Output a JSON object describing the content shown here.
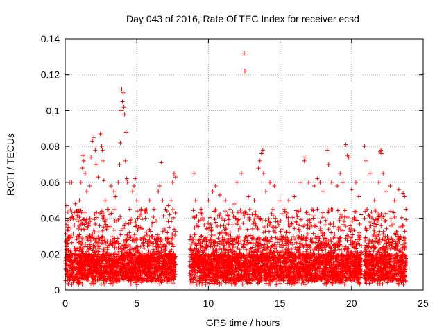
{
  "chart_data": {
    "type": "scatter",
    "title": "Day 043 of 2016, Rate Of TEC Index for receiver ecsd",
    "xlabel": "GPS time / hours",
    "ylabel": "ROTI / TECUs",
    "xlim": [
      0,
      25
    ],
    "ylim": [
      0,
      0.14
    ],
    "x_ticks": [
      "0",
      "5",
      "10",
      "15",
      "20",
      "25"
    ],
    "y_ticks": [
      "0",
      "0.02",
      "0.04",
      "0.06",
      "0.08",
      "0.1",
      "0.12",
      "0.14"
    ],
    "grid": true,
    "marker": "+",
    "color": "#ff0000",
    "series": [
      {
        "points": [
          [
            0.1,
            0.047
          ],
          [
            0.2,
            0.035
          ],
          [
            0.3,
            0.06
          ],
          [
            0.45,
            0.06
          ],
          [
            0.5,
            0.041
          ],
          [
            0.7,
            0.048
          ],
          [
            0.9,
            0.045
          ],
          [
            1.0,
            0.05
          ],
          [
            1.1,
            0.06
          ],
          [
            1.2,
            0.068
          ],
          [
            1.25,
            0.075
          ],
          [
            1.3,
            0.072
          ],
          [
            1.4,
            0.065
          ],
          [
            1.5,
            0.055
          ],
          [
            1.7,
            0.058
          ],
          [
            1.8,
            0.074
          ],
          [
            1.9,
            0.083
          ],
          [
            2.0,
            0.085
          ],
          [
            2.1,
            0.078
          ],
          [
            2.15,
            0.07
          ],
          [
            2.3,
            0.063
          ],
          [
            2.45,
            0.087
          ],
          [
            2.55,
            0.08
          ],
          [
            2.6,
            0.078
          ],
          [
            2.65,
            0.072
          ],
          [
            2.7,
            0.061
          ],
          [
            2.8,
            0.05
          ],
          [
            3.0,
            0.045
          ],
          [
            3.2,
            0.058
          ],
          [
            3.4,
            0.055
          ],
          [
            3.5,
            0.052
          ],
          [
            3.7,
            0.06
          ],
          [
            3.8,
            0.07
          ],
          [
            3.85,
            0.082
          ],
          [
            3.9,
            0.1
          ],
          [
            3.95,
            0.112
          ],
          [
            4.0,
            0.105
          ],
          [
            4.05,
            0.11
          ],
          [
            4.1,
            0.102
          ],
          [
            4.15,
            0.098
          ],
          [
            4.2,
            0.072
          ],
          [
            4.25,
            0.088
          ],
          [
            4.3,
            0.062
          ],
          [
            4.35,
            0.06
          ],
          [
            4.5,
            0.045
          ],
          [
            4.7,
            0.055
          ],
          [
            4.8,
            0.058
          ],
          [
            4.9,
            0.062
          ],
          [
            5.0,
            0.05
          ],
          [
            5.3,
            0.045
          ],
          [
            5.6,
            0.04
          ],
          [
            5.9,
            0.05
          ],
          [
            6.2,
            0.045
          ],
          [
            6.5,
            0.055
          ],
          [
            6.6,
            0.058
          ],
          [
            6.7,
            0.071
          ],
          [
            6.8,
            0.05
          ],
          [
            7.0,
            0.045
          ],
          [
            7.2,
            0.047
          ],
          [
            7.4,
            0.05
          ],
          [
            7.5,
            0.06
          ],
          [
            7.6,
            0.065
          ],
          [
            7.7,
            0.063
          ],
          [
            9.0,
            0.065
          ],
          [
            9.1,
            0.05
          ],
          [
            9.5,
            0.045
          ],
          [
            10.0,
            0.05
          ],
          [
            10.3,
            0.055
          ],
          [
            10.5,
            0.058
          ],
          [
            10.8,
            0.053
          ],
          [
            11.2,
            0.05
          ],
          [
            11.5,
            0.045
          ],
          [
            11.8,
            0.048
          ],
          [
            12.0,
            0.06
          ],
          [
            12.3,
            0.065
          ],
          [
            12.5,
            0.132
          ],
          [
            12.55,
            0.122
          ],
          [
            12.8,
            0.052
          ],
          [
            13.2,
            0.05
          ],
          [
            13.5,
            0.068
          ],
          [
            13.6,
            0.072
          ],
          [
            13.7,
            0.076
          ],
          [
            13.8,
            0.078
          ],
          [
            13.85,
            0.065
          ],
          [
            14.0,
            0.055
          ],
          [
            14.3,
            0.06
          ],
          [
            14.6,
            0.058
          ],
          [
            15.0,
            0.05
          ],
          [
            15.3,
            0.045
          ],
          [
            15.6,
            0.05
          ],
          [
            16.0,
            0.052
          ],
          [
            16.4,
            0.06
          ],
          [
            16.7,
            0.072
          ],
          [
            16.75,
            0.074
          ],
          [
            17.0,
            0.06
          ],
          [
            17.4,
            0.058
          ],
          [
            17.6,
            0.062
          ],
          [
            17.8,
            0.06
          ],
          [
            18.0,
            0.055
          ],
          [
            18.3,
            0.078
          ],
          [
            18.4,
            0.07
          ],
          [
            18.6,
            0.06
          ],
          [
            19.0,
            0.058
          ],
          [
            19.2,
            0.065
          ],
          [
            19.4,
            0.06
          ],
          [
            19.6,
            0.081
          ],
          [
            19.7,
            0.075
          ],
          [
            19.8,
            0.074
          ],
          [
            20.0,
            0.056
          ],
          [
            20.3,
            0.06
          ],
          [
            20.5,
            0.052
          ],
          [
            20.9,
            0.08
          ],
          [
            21.0,
            0.072
          ],
          [
            21.3,
            0.065
          ],
          [
            21.6,
            0.05
          ],
          [
            21.9,
            0.06
          ],
          [
            22.0,
            0.077
          ],
          [
            22.05,
            0.078
          ],
          [
            22.1,
            0.076
          ],
          [
            22.2,
            0.065
          ],
          [
            22.4,
            0.055
          ],
          [
            22.7,
            0.058
          ],
          [
            23.0,
            0.05
          ],
          [
            23.3,
            0.056
          ],
          [
            23.6,
            0.054
          ],
          [
            23.7,
            0.052
          ],
          [
            23.8,
            0.045
          ]
        ]
      }
    ],
    "dense_band": {
      "segments": [
        [
          0.0,
          7.7
        ],
        [
          8.7,
          20.7
        ],
        [
          20.9,
          23.8
        ]
      ],
      "note_values_range": [
        0.002,
        0.048
      ]
    }
  }
}
